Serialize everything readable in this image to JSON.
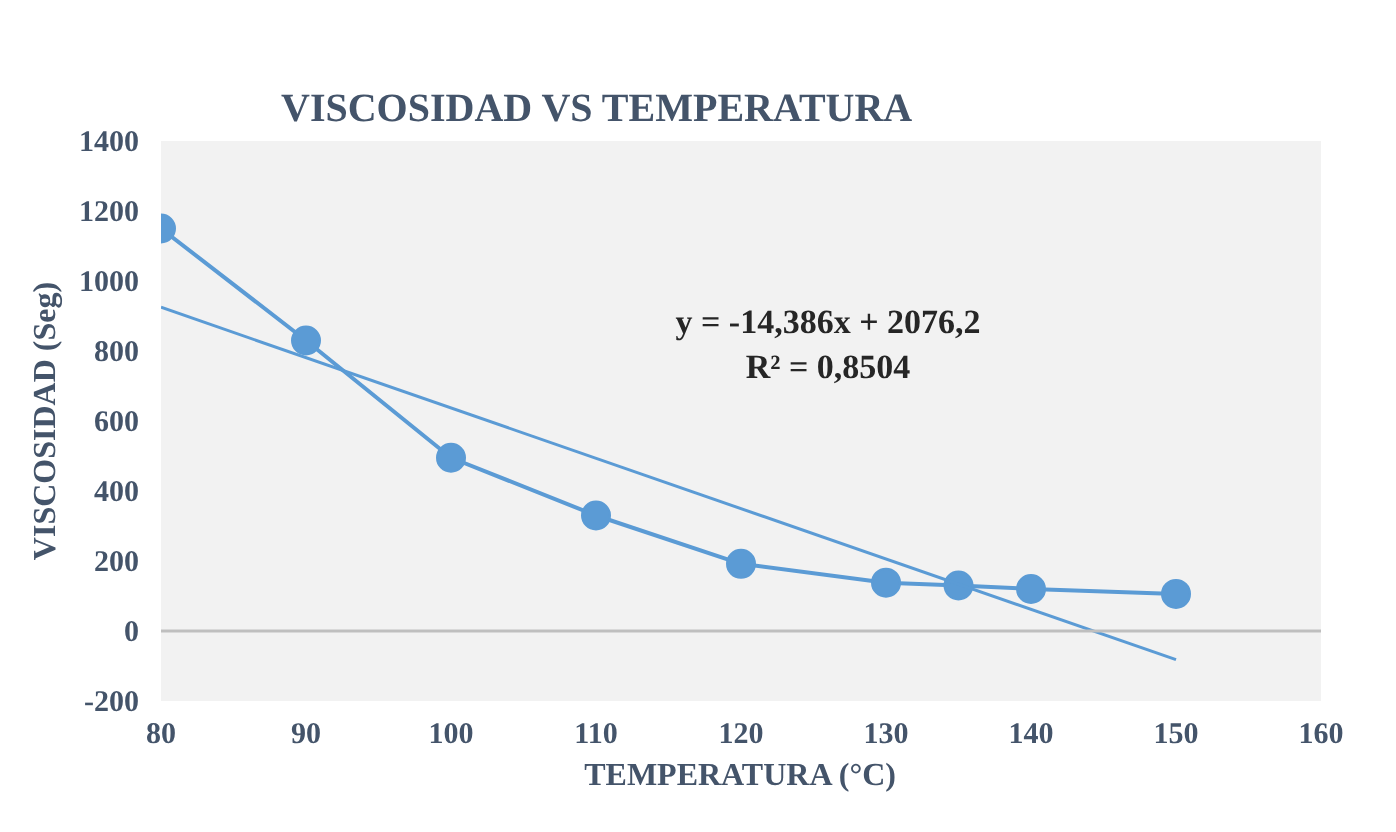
{
  "chart_data": {
    "type": "line",
    "title": "VISCOSIDAD VS TEMPERATURA",
    "xlabel": "TEMPERATURA (°C)",
    "ylabel": "VISCOSIDAD (Seg)",
    "x": [
      80,
      90,
      100,
      110,
      120,
      130,
      135,
      140,
      150
    ],
    "series": [
      {
        "color": "#5b9bd5",
        "values": [
          1150,
          830,
          495,
          330,
          192,
          138,
          130,
          120,
          106
        ],
        "marker": "circle"
      },
      {
        "type": "line",
        "color": "#5b9bd5",
        "x": [
          80,
          150
        ],
        "values": [
          925,
          -82
        ],
        "marker": "none"
      }
    ],
    "xlim": [
      80,
      160
    ],
    "xticks": [
      80,
      90,
      100,
      110,
      120,
      130,
      140,
      150,
      160
    ],
    "ylim": [
      -200,
      1400
    ],
    "yticks": [
      -200,
      0,
      200,
      400,
      600,
      800,
      1000,
      1200,
      1400
    ],
    "ref_lines": [
      {
        "axis": "y",
        "value": 0,
        "color": "#bfbfbf"
      }
    ],
    "annotations": [
      "y = -14,386x + 2076,2",
      "R² = 0,8504"
    ],
    "grid": false,
    "line_style": "solid"
  }
}
